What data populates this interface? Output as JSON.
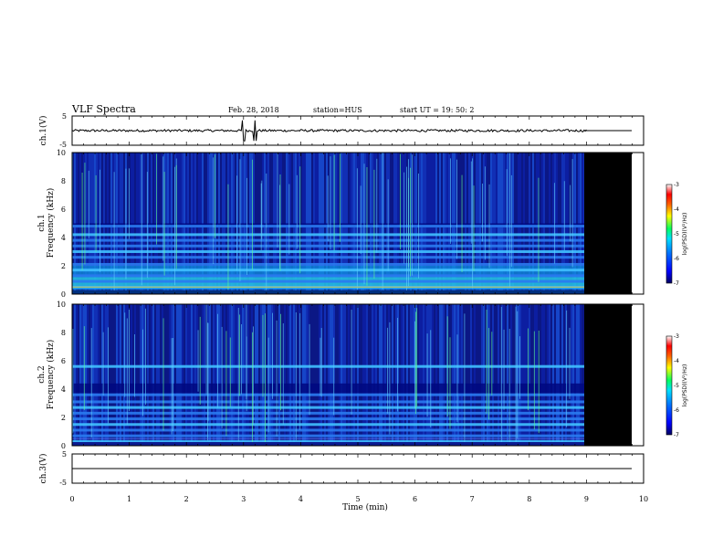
{
  "header": {
    "title": "VLF Spectra",
    "date": "Feb. 28, 2018",
    "station": "station=HUS",
    "start": "start  UT =   19: 50: 2"
  },
  "chart_data": [
    {
      "type": "line",
      "name": "ch1-waveform",
      "ylabel": "ch.1(V)",
      "ylim": [
        -5,
        5
      ],
      "ytick_labels": [
        "5",
        "-5"
      ],
      "xlim": [
        0,
        10
      ],
      "baseline": 0.0,
      "data_end_min": 9.0,
      "flat_until_min": 9.85
    },
    {
      "type": "heatmap",
      "name": "ch1-spectrogram",
      "ylabel_top": "ch.1",
      "ylabel": "Frequency  (kHz)",
      "ylim": [
        0,
        10
      ],
      "ytick_labels": [
        "0",
        "2",
        "4",
        "6",
        "8",
        "10"
      ],
      "xlim": [
        0,
        10
      ],
      "data_end_min": 9.0,
      "blank_until_min": 9.85,
      "horizontal_bands_khz": [
        0.5,
        0.9,
        1.3,
        1.7,
        2.1,
        2.6,
        3.0,
        3.4,
        3.8,
        4.2,
        4.8
      ],
      "colorbar": {
        "label": "log(PSD)(V²/Hz)",
        "ticks": [
          "-3",
          "-4",
          "-5",
          "-6",
          "-7"
        ],
        "range": [
          -7,
          -3
        ]
      }
    },
    {
      "type": "heatmap",
      "name": "ch2-spectrogram",
      "ylabel_top": "ch.2",
      "ylabel": "Frequency  (kHz)",
      "ylim": [
        0,
        10
      ],
      "ytick_labels": [
        "0",
        "2",
        "4",
        "6",
        "8",
        "10"
      ],
      "xlim": [
        0,
        10
      ],
      "data_end_min": 9.0,
      "blank_until_min": 9.85,
      "horizontal_bands_khz": [
        0.3,
        0.7,
        1.1,
        1.5,
        1.9,
        2.3,
        2.7,
        3.1,
        3.6,
        5.6
      ],
      "colorbar": {
        "label": "log(PSD)(V²/Hz)",
        "ticks": [
          "-3",
          "-4",
          "-5",
          "-6",
          "-7"
        ],
        "range": [
          -7,
          -3
        ]
      }
    },
    {
      "type": "line",
      "name": "ch3-waveform",
      "ylabel": "ch.3(V)",
      "ylim": [
        -5,
        5
      ],
      "ytick_labels": [
        "5",
        "-5"
      ],
      "xlim": [
        0,
        10
      ],
      "xlabel": "Time  (min)",
      "xtick_labels": [
        "0",
        "1",
        "2",
        "3",
        "4",
        "5",
        "6",
        "7",
        "8",
        "9",
        "10"
      ],
      "baseline": 0.0,
      "flat_until_min": 9.85
    }
  ]
}
